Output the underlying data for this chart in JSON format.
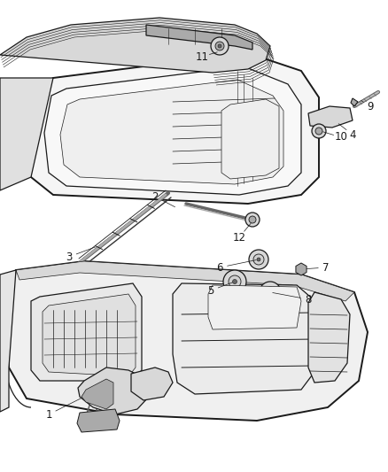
{
  "bg_color": "#ffffff",
  "line_color": "#1a1a1a",
  "label_color": "#1a1a1a",
  "fig_width": 4.38,
  "fig_height": 5.33,
  "dpi": 100,
  "gray_light": "#d8d8d8",
  "gray_mid": "#aaaaaa",
  "gray_dark": "#666666",
  "lw_main": 0.9,
  "lw_thin": 0.5,
  "lw_thick": 1.4
}
